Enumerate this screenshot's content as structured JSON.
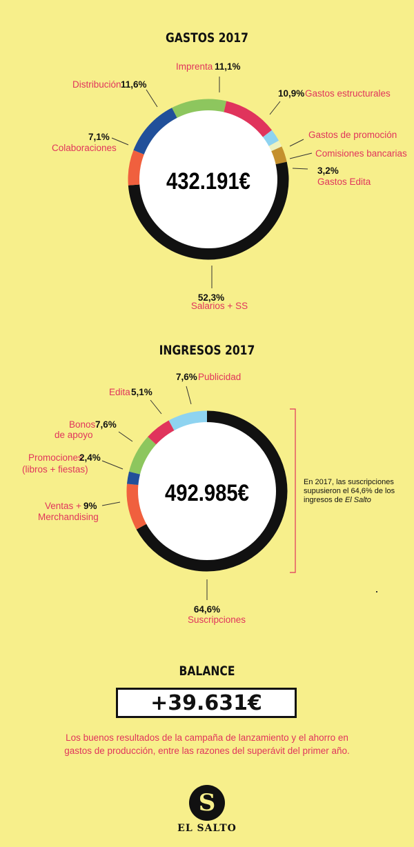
{
  "chart_data": [
    {
      "type": "pie",
      "title": "GASTOS 2017",
      "total": "432.191€",
      "slices": [
        {
          "name": "Imprenta",
          "value": 11.1,
          "label": "11,1%",
          "color": "#8dc65e"
        },
        {
          "name": "Gastos estructurales",
          "value": 10.9,
          "label": "10,9%",
          "color": "#e0345c"
        },
        {
          "name": "Gastos de promoción",
          "value": 2.5,
          "label": "",
          "color": "#8ed3f0"
        },
        {
          "name": "Comisiones bancarias",
          "value": 1.3,
          "label": "",
          "color": "#eef2c0"
        },
        {
          "name": "Gastos Edita",
          "value": 3.2,
          "label": "3,2%",
          "color": "#c4902e"
        },
        {
          "name": "Salarios + SS",
          "value": 52.3,
          "label": "52,3%",
          "color": "#111111"
        },
        {
          "name": "Colaboraciones",
          "value": 7.1,
          "label": "7,1%",
          "color": "#f0603e"
        },
        {
          "name": "Distribución",
          "value": 11.6,
          "label": "11,6%",
          "color": "#21509a"
        }
      ]
    },
    {
      "type": "pie",
      "title": "INGRESOS 2017",
      "total": "492.985€",
      "slices": [
        {
          "name": "Suscripciones",
          "value": 64.6,
          "label": "64,6%",
          "color": "#111111"
        },
        {
          "name": "Ventas + Merchandising",
          "value": 9,
          "label": "9%",
          "color": "#f0603e"
        },
        {
          "name": "Promociones (libros + fiestas)",
          "value": 2.4,
          "label": "2,4%",
          "color": "#21509a"
        },
        {
          "name": "Bonos de apoyo",
          "value": 7.6,
          "label": "7,6%",
          "color": "#8dc65e"
        },
        {
          "name": "Edita",
          "value": 5.1,
          "label": "5,1%",
          "color": "#e0345c"
        },
        {
          "name": "Publicidad",
          "value": 7.6,
          "label": "7,6%",
          "color": "#8ed3f0"
        }
      ]
    }
  ],
  "gastos": {
    "title": "GASTOS 2017",
    "total": "432.191€",
    "labels": {
      "imprenta_name": "Imprenta",
      "imprenta_pct": "11,1%",
      "estruct_pct": "10,9%",
      "estruct_name": "Gastos estructurales",
      "promo_name": "Gastos de promoción",
      "comis_name": "Comisiones bancarias",
      "edita_pct": "3,2%",
      "edita_name": "Gastos Edita",
      "salarios_pct": "52,3%",
      "salarios_name": "Salarios + SS",
      "colab_pct": "7,1%",
      "colab_name": "Colaboraciones",
      "distrib_name": "Distribución",
      "distrib_pct": "11,6%"
    }
  },
  "ingresos": {
    "title": "INGRESOS 2017",
    "total": "492.985€",
    "labels": {
      "publi_pct": "7,6%",
      "publi_name": "Publicidad",
      "edita_name": "Edita",
      "edita_pct": "5,1%",
      "bonos_name1": "Bonos",
      "bonos_name2": "de apoyo",
      "bonos_pct": "7,6%",
      "promo_name1": "Promociones",
      "promo_name2": "(libros + fiestas)",
      "promo_pct": "2,4%",
      "ventas_name1": "Ventas +",
      "ventas_name2": "Merchandising",
      "ventas_pct": "9%",
      "susc_pct": "64,6%",
      "susc_name": "Suscripciones"
    },
    "note_line1": "En 2017, las suscripciones",
    "note_line2": "supusieron el 64,6% de los",
    "note_line3": "ingresos de",
    "note_italic": "El Salto"
  },
  "balance": {
    "title": "BALANCE",
    "value": "+39.631€",
    "text_line1": "Los buenos resultados de la campaña de lanzamiento y el ahorro en",
    "text_line2": "gastos de producción, entre las razones del superávit del primer año."
  },
  "logo": {
    "letter": "S",
    "name": "EL SALTO"
  }
}
